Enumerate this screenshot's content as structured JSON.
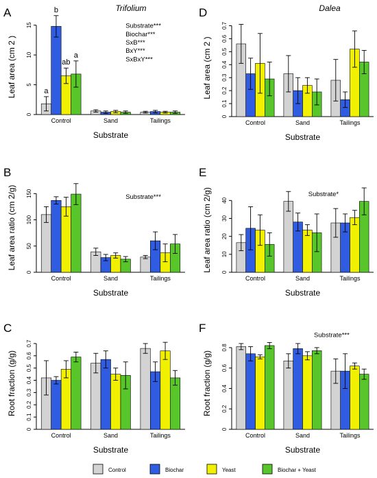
{
  "figure": {
    "legend": [
      {
        "name": "Control",
        "color": "#d3d3d3"
      },
      {
        "name": "Biochar",
        "color": "#2f5ce0"
      },
      {
        "name": "Yeast",
        "color": "#f0f000"
      },
      {
        "name": "Biochar + Yeast",
        "color": "#58c52a"
      }
    ]
  },
  "chart_data": [
    {
      "type": "bar",
      "panel": "A",
      "title": "Trifolium",
      "categories": [
        "Control",
        "Sand",
        "Tailings"
      ],
      "xlabel": "Substrate",
      "ylabel": "Leaf area (cm 2 )",
      "ylim": [
        0,
        16
      ],
      "yticks": [
        0,
        5,
        10,
        15
      ],
      "ytick_labels": [
        "0",
        "5",
        "10",
        "15"
      ],
      "series": [
        {
          "name": "Control",
          "values": [
            1.8,
            0.6,
            0.4
          ],
          "errors": [
            1.2,
            0.2,
            0.15
          ]
        },
        {
          "name": "Biochar",
          "values": [
            14.8,
            0.4,
            0.5
          ],
          "errors": [
            1.8,
            0.2,
            0.2
          ]
        },
        {
          "name": "Yeast",
          "values": [
            6.5,
            0.5,
            0.4
          ],
          "errors": [
            1.3,
            0.2,
            0.15
          ]
        },
        {
          "name": "Biochar + Yeast",
          "values": [
            6.8,
            0.4,
            0.4
          ],
          "errors": [
            2.2,
            0.2,
            0.2
          ]
        }
      ],
      "bar_letters": [
        {
          "group": 0,
          "series": 0,
          "text": "a"
        },
        {
          "group": 0,
          "series": 1,
          "text": "b"
        },
        {
          "group": 0,
          "series": 2,
          "text": "ab"
        },
        {
          "group": 0,
          "series": 3,
          "text": "a"
        }
      ],
      "annotations": [
        "Substrate***",
        "Biochar***",
        "SxB***",
        "BxY***",
        "SxBxY***"
      ],
      "annotation_y": [
        15,
        13.6,
        12.2,
        10.8,
        9.4
      ],
      "annotation_x_frac": 0.6
    },
    {
      "type": "bar",
      "panel": "B",
      "title": "",
      "categories": [
        "Control",
        "Sand",
        "Tailings"
      ],
      "xlabel": "Substrate",
      "ylabel": "Leaf area ratio (cm 2/g)",
      "ylim": [
        0,
        170
      ],
      "yticks": [
        0,
        50,
        100,
        150
      ],
      "ytick_labels": [
        "0",
        "50",
        "100",
        "150"
      ],
      "series": [
        {
          "name": "Control",
          "values": [
            110,
            39,
            29
          ],
          "errors": [
            15,
            7,
            3
          ]
        },
        {
          "name": "Biochar",
          "values": [
            137,
            28,
            60
          ],
          "errors": [
            7,
            6,
            17
          ]
        },
        {
          "name": "Yeast",
          "values": [
            125,
            32,
            37
          ],
          "errors": [
            18,
            5,
            17
          ]
        },
        {
          "name": "Biochar + Yeast",
          "values": [
            149,
            25,
            54
          ],
          "errors": [
            20,
            5,
            18
          ]
        }
      ],
      "annotations": [
        "Substrate***"
      ],
      "annotation_y": [
        145
      ],
      "annotation_x_frac": 0.6
    },
    {
      "type": "bar",
      "panel": "C",
      "title": "",
      "categories": [
        "Control",
        "Sand",
        "Tailings"
      ],
      "xlabel": "Substrate",
      "ylabel": "Root fraction (g/g)",
      "ylim": [
        0,
        0.75
      ],
      "yticks": [
        0,
        0.1,
        0.2,
        0.3,
        0.4,
        0.5,
        0.6,
        0.7
      ],
      "ytick_labels": [
        "0",
        "0.1",
        "0.2",
        "0.3",
        "0.4",
        "0.5",
        "0.6",
        "0.7"
      ],
      "series": [
        {
          "name": "Control",
          "values": [
            0.42,
            0.54,
            0.66
          ],
          "errors": [
            0.14,
            0.08,
            0.04
          ]
        },
        {
          "name": "Biochar",
          "values": [
            0.4,
            0.57,
            0.47
          ],
          "errors": [
            0.03,
            0.07,
            0.08
          ]
        },
        {
          "name": "Yeast",
          "values": [
            0.49,
            0.45,
            0.64
          ],
          "errors": [
            0.07,
            0.05,
            0.07
          ]
        },
        {
          "name": "Biochar + Yeast",
          "values": [
            0.59,
            0.44,
            0.42
          ],
          "errors": [
            0.04,
            0.11,
            0.06
          ]
        }
      ]
    },
    {
      "type": "bar",
      "panel": "D",
      "title": "Dalea",
      "categories": [
        "Control",
        "Sand",
        "Tailings"
      ],
      "xlabel": "Substrate",
      "ylabel": "Leaf area (cm 2 )",
      "ylim": [
        0,
        0.75
      ],
      "yticks": [
        0,
        0.1,
        0.2,
        0.3,
        0.4,
        0.5,
        0.6,
        0.7
      ],
      "ytick_labels": [
        "0",
        "0.1",
        "0.2",
        "0.3",
        "0.4",
        "0.5",
        "0.6",
        "0.7"
      ],
      "series": [
        {
          "name": "Control",
          "values": [
            0.56,
            0.33,
            0.28
          ],
          "errors": [
            0.15,
            0.14,
            0.16
          ]
        },
        {
          "name": "Biochar",
          "values": [
            0.33,
            0.2,
            0.13
          ],
          "errors": [
            0.12,
            0.1,
            0.06
          ]
        },
        {
          "name": "Yeast",
          "values": [
            0.41,
            0.24,
            0.52
          ],
          "errors": [
            0.23,
            0.06,
            0.14
          ]
        },
        {
          "name": "Biochar + Yeast",
          "values": [
            0.29,
            0.19,
            0.42
          ],
          "errors": [
            0.13,
            0.1,
            0.09
          ]
        }
      ]
    },
    {
      "type": "bar",
      "panel": "E",
      "title": "",
      "categories": [
        "Control",
        "Sand",
        "Tailings"
      ],
      "xlabel": "Substrate",
      "ylabel": "Leaf area ratio (cm 2/g)",
      "ylim": [
        0,
        47
      ],
      "yticks": [
        0,
        10,
        20,
        30,
        40
      ],
      "ytick_labels": [
        "0",
        "10",
        "20",
        "30",
        "40"
      ],
      "series": [
        {
          "name": "Control",
          "values": [
            16.5,
            39.5,
            27.5
          ],
          "errors": [
            4.5,
            5.5,
            8
          ]
        },
        {
          "name": "Biochar",
          "values": [
            24.5,
            28,
            27.5
          ],
          "errors": [
            12,
            5,
            5
          ]
        },
        {
          "name": "Yeast",
          "values": [
            23.5,
            23.5,
            30.5
          ],
          "errors": [
            8.5,
            3,
            4
          ]
        },
        {
          "name": "Biochar + Yeast",
          "values": [
            15.5,
            22,
            39.5
          ],
          "errors": [
            6.5,
            10.5,
            7.5
          ]
        }
      ],
      "annotations": [
        "Substrate*"
      ],
      "annotation_y": [
        44
      ],
      "annotation_x_frac": 0.54
    },
    {
      "type": "bar",
      "panel": "F",
      "title": "",
      "categories": [
        "Control",
        "Sand",
        "Tailings"
      ],
      "xlabel": "Substrate",
      "ylabel": "Root fraction (g/g)",
      "ylim": [
        0,
        0.9
      ],
      "yticks": [
        0,
        0.2,
        0.4,
        0.6,
        0.8
      ],
      "ytick_labels": [
        "0",
        "0.2",
        "0.4",
        "0.6",
        "0.8"
      ],
      "series": [
        {
          "name": "Control",
          "values": [
            0.81,
            0.67,
            0.57
          ],
          "errors": [
            0.03,
            0.07,
            0.12
          ]
        },
        {
          "name": "Biochar",
          "values": [
            0.74,
            0.79,
            0.57
          ],
          "errors": [
            0.07,
            0.05,
            0.17
          ]
        },
        {
          "name": "Yeast",
          "values": [
            0.71,
            0.72,
            0.62
          ],
          "errors": [
            0.02,
            0.04,
            0.03
          ]
        },
        {
          "name": "Biochar + Yeast",
          "values": [
            0.82,
            0.77,
            0.54
          ],
          "errors": [
            0.03,
            0.03,
            0.05
          ]
        }
      ],
      "annotations": [
        "Substrate***"
      ],
      "annotation_y": [
        0.93
      ],
      "annotation_x_frac": 0.58
    }
  ]
}
